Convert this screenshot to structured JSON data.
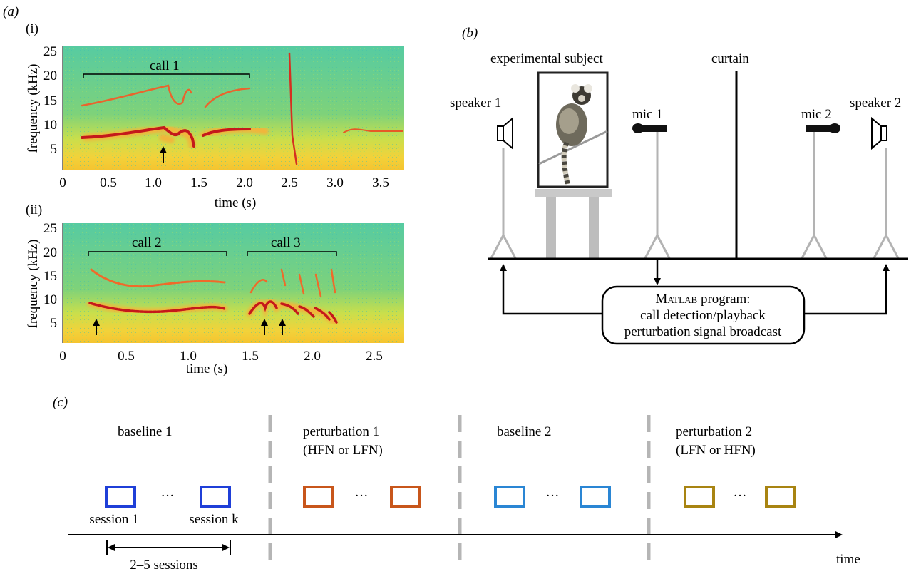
{
  "panels": {
    "a": "(a)",
    "a_i": "(i)",
    "a_ii": "(ii)",
    "b": "(b)",
    "c": "(c)"
  },
  "spectrogram_i": {
    "ylabel": "frequency (kHz)",
    "xlabel": "time (s)",
    "yticks": [
      "25",
      "20",
      "15",
      "10",
      "5"
    ],
    "xticks": [
      "0",
      "0.5",
      "1.0",
      "1.5",
      "2.0",
      "2.5",
      "3.0",
      "3.5"
    ],
    "call_labels": [
      "call 1"
    ]
  },
  "spectrogram_ii": {
    "ylabel": "frequency (kHz)",
    "xlabel": "time (s)",
    "yticks": [
      "25",
      "20",
      "15",
      "10",
      "5"
    ],
    "xticks": [
      "0",
      "0.5",
      "1.0",
      "1.5",
      "2.0",
      "2.5"
    ],
    "call_labels": [
      "call 2",
      "call 3"
    ]
  },
  "setup": {
    "subject_label": "experimental subject",
    "curtain_label": "curtain",
    "speaker1": "speaker 1",
    "speaker2": "speaker 2",
    "mic1": "mic 1",
    "mic2": "mic 2",
    "program_title_prefix": "M",
    "program_title_rest": "ATLAB",
    "program_title_suffix": " program:",
    "program_line2": "call detection/playback",
    "program_line3": "perturbation signal broadcast"
  },
  "timeline": {
    "phases": [
      {
        "line1": "baseline 1",
        "line2": "",
        "color": "#1f3fd8"
      },
      {
        "line1": "perturbation 1",
        "line2": "(HFN or LFN)",
        "color": "#c8561b"
      },
      {
        "line1": "baseline 2",
        "line2": "",
        "color": "#2a86d4"
      },
      {
        "line1": "perturbation 2",
        "line2": "(LFN or HFN)",
        "color": "#a88412"
      }
    ],
    "ellipsis": "···",
    "session_first": "session 1",
    "session_last": "session k",
    "range_label": "2–5 sessions",
    "time_label": "time"
  },
  "colors": {
    "spectrogram_bg": "#5fd08c",
    "harmonic": "#c4191b",
    "harmonic_glow": "#f1b63b",
    "divider": "#b5b5b5",
    "stand": "#b3b3b3"
  }
}
